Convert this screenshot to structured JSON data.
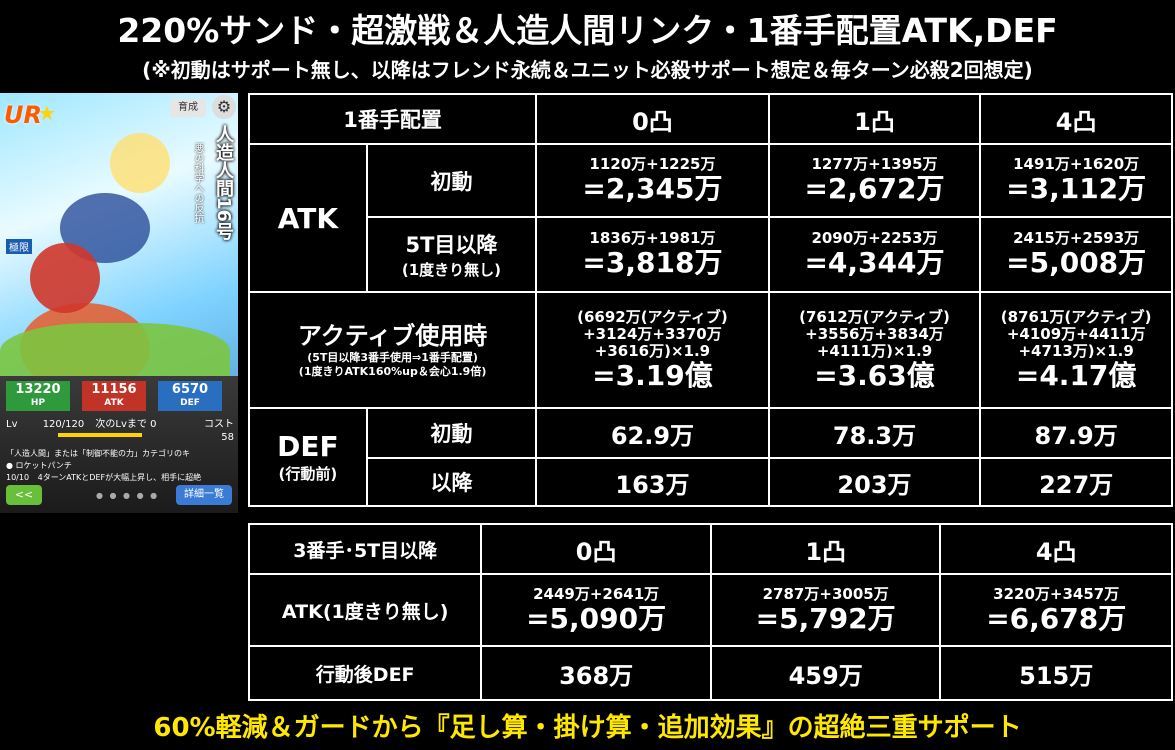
{
  "title": "220%サンド・超激戦＆人造人間リンク・1番手配置ATK,DEF",
  "subtitle": "(※初動はサポート無し、以降はフレンド永続＆ユニット必殺サポート想定＆毎ターン必殺2回想定)",
  "footer": "60%軽減＆ガードから『足し算・掛け算・追加効果』の超絶三重サポート",
  "card": {
    "rank_badge": "UR",
    "growth_label": "育成",
    "name": "人造人間16号",
    "attribute_text": "悪の科学への反抗",
    "rarity_label": "極限",
    "stats": {
      "hp": "13220",
      "hp_label": "HP",
      "atk": "11156",
      "atk_label": "ATK",
      "def": "6570",
      "def_label": "DEF"
    },
    "lv_label": "Lv",
    "lv_value": "120/120",
    "next_lv": "次のLvまで 0",
    "cost_label": "コスト",
    "cost_value": "58",
    "skill_text_1": "「人造人間」または「制御不能の力」カテゴリのキ",
    "skill_text_2": "ロケットパンチ",
    "skill_text_3": "4ターンATKとDEFが大幅上昇し、相手に超絶",
    "skill_lv": "10/10",
    "back_button": "<<",
    "detail_button": "詳細一覧",
    "lv_fill": 1.0
  },
  "table1": {
    "header_label": "1番手配置",
    "columns": [
      "0凸",
      "1凸",
      "4凸"
    ],
    "atk_label": "ATK",
    "initial_label": "初動",
    "initial": [
      {
        "formula": "1120万+1225万",
        "total": "=2,345万"
      },
      {
        "formula": "1277万+1395万",
        "total": "=2,672万"
      },
      {
        "formula": "1491万+1620万",
        "total": "=3,112万"
      }
    ],
    "after5_label": "5T目以降",
    "after5_note": "(1度きり無し)",
    "after5": [
      {
        "formula": "1836万+1981万",
        "total": "=3,818万"
      },
      {
        "formula": "2090万+2253万",
        "total": "=4,344万"
      },
      {
        "formula": "2415万+2593万",
        "total": "=5,008万"
      }
    ],
    "active_label": "アクティブ使用時",
    "active_note1": "(5T目以降3番手使用⇒1番手配置)",
    "active_note2": "(1度きりATK160%up＆会心1.9倍)",
    "active": [
      {
        "l1": "(6692万(アクティブ)",
        "l2": "+3124万+3370万",
        "l3": "+3616万)×1.9",
        "total": "=3.19億"
      },
      {
        "l1": "(7612万(アクティブ)",
        "l2": "+3556万+3834万",
        "l3": "+4111万)×1.9",
        "total": "=3.63億"
      },
      {
        "l1": "(8761万(アクティブ)",
        "l2": "+4109万+4411万",
        "l3": "+4713万)×1.9",
        "total": "=4.17億"
      }
    ],
    "def_label": "DEF",
    "def_note": "(行動前)",
    "def_initial_label": "初動",
    "def_initial": [
      "62.9万",
      "78.3万",
      "87.9万"
    ],
    "def_after_label": "以降",
    "def_after": [
      "163万",
      "203万",
      "227万"
    ]
  },
  "table2": {
    "header_label": "3番手･5T目以降",
    "columns": [
      "0凸",
      "1凸",
      "4凸"
    ],
    "atk_label": "ATK(1度きり無し)",
    "atk": [
      {
        "formula": "2449万+2641万",
        "total": "=5,090万"
      },
      {
        "formula": "2787万+3005万",
        "total": "=5,792万"
      },
      {
        "formula": "3220万+3457万",
        "total": "=6,678万"
      }
    ],
    "def_label": "行動後DEF",
    "def": [
      "368万",
      "459万",
      "515万"
    ]
  },
  "colors": {
    "background": "#000000",
    "footer_text": "#ffe800",
    "border": "#ffffff"
  }
}
